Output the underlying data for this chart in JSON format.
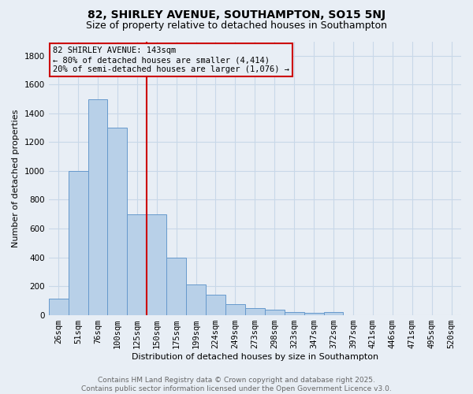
{
  "title": "82, SHIRLEY AVENUE, SOUTHAMPTON, SO15 5NJ",
  "subtitle": "Size of property relative to detached houses in Southampton",
  "xlabel": "Distribution of detached houses by size in Southampton",
  "ylabel": "Number of detached properties",
  "categories": [
    "26sqm",
    "51sqm",
    "76sqm",
    "100sqm",
    "125sqm",
    "150sqm",
    "175sqm",
    "199sqm",
    "224sqm",
    "249sqm",
    "273sqm",
    "298sqm",
    "323sqm",
    "347sqm",
    "372sqm",
    "397sqm",
    "421sqm",
    "446sqm",
    "471sqm",
    "495sqm",
    "520sqm"
  ],
  "values": [
    110,
    1000,
    1500,
    1300,
    700,
    700,
    400,
    210,
    140,
    75,
    45,
    35,
    20,
    15,
    20,
    0,
    0,
    0,
    0,
    0,
    0
  ],
  "bar_color": "#b8d0e8",
  "bar_edge_color": "#6699cc",
  "vline_color": "#cc0000",
  "annotation_line1": "82 SHIRLEY AVENUE: 143sqm",
  "annotation_line2": "← 80% of detached houses are smaller (4,414)",
  "annotation_line3": "20% of semi-detached houses are larger (1,076) →",
  "annotation_box_color": "#cc0000",
  "ylim": [
    0,
    1900
  ],
  "yticks": [
    0,
    200,
    400,
    600,
    800,
    1000,
    1200,
    1400,
    1600,
    1800
  ],
  "grid_color": "#c8d8e8",
  "background_color": "#e8eef5",
  "footer_text": "Contains HM Land Registry data © Crown copyright and database right 2025.\nContains public sector information licensed under the Open Government Licence v3.0.",
  "title_fontsize": 10,
  "subtitle_fontsize": 9,
  "axis_label_fontsize": 8,
  "tick_fontsize": 7.5,
  "annotation_fontsize": 7.5,
  "footer_fontsize": 6.5
}
